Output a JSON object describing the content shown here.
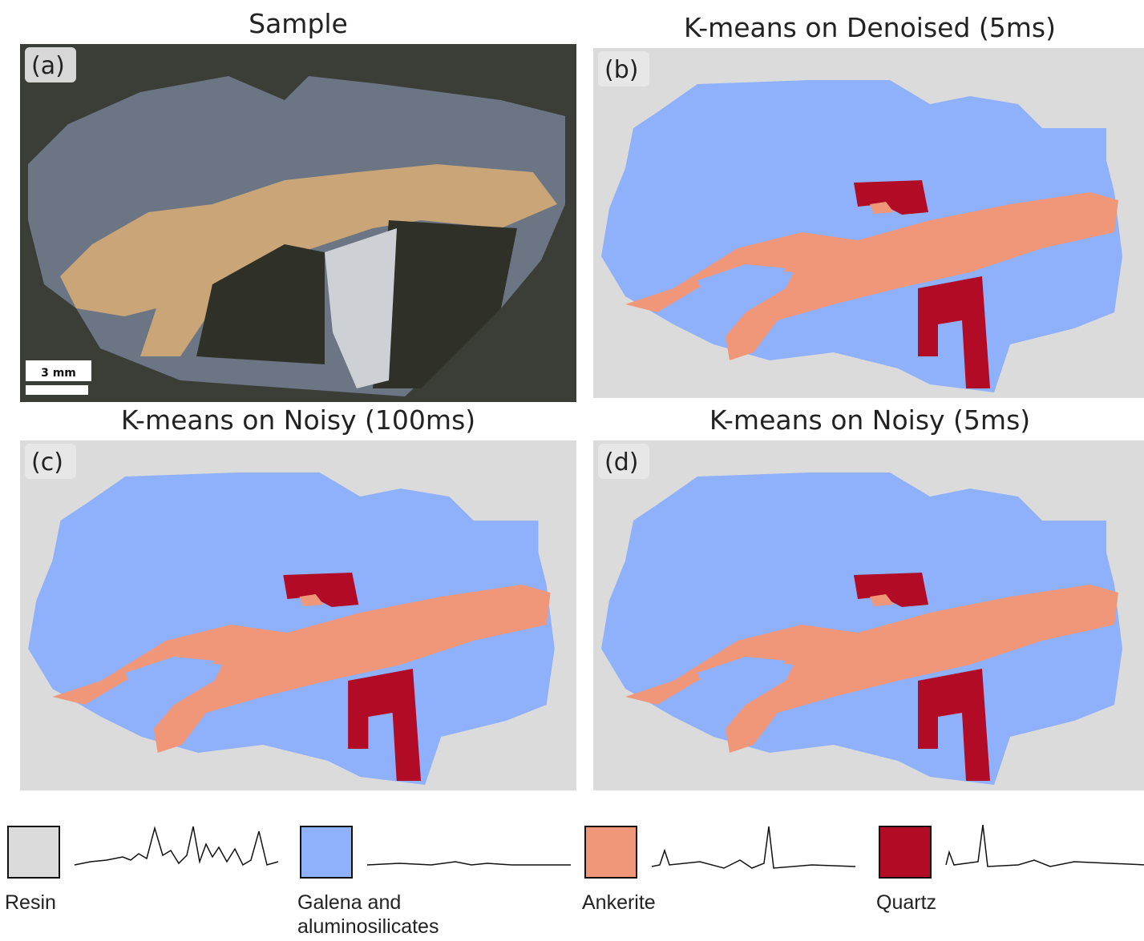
{
  "panels": [
    {
      "label": "(a)",
      "title": "Sample"
    },
    {
      "label": "(b)",
      "title": "K-means on Denoised (5ms)"
    },
    {
      "label": "(c)",
      "title": "K-means on Noisy (100ms)"
    },
    {
      "label": "(d)",
      "title": "K-means on Noisy (5ms)"
    }
  ],
  "scale_bar": "3 mm",
  "legend": [
    {
      "label": "Resin",
      "color": "#dcdbdb"
    },
    {
      "label": "Galena and aluminosilicates",
      "color": "#8fb0fb"
    },
    {
      "label": "Ankerite",
      "color": "#f0977a"
    },
    {
      "label": "Quartz",
      "color": "#b10b26"
    }
  ]
}
